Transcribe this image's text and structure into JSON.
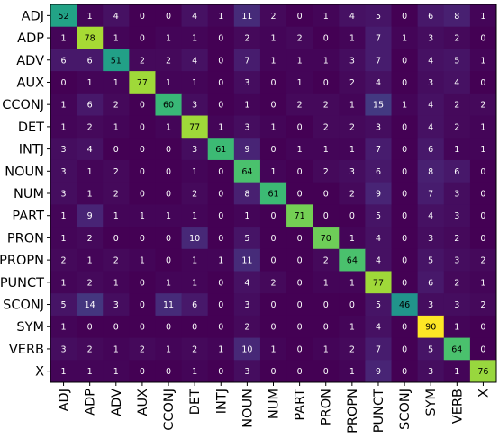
{
  "chart_data": {
    "type": "heatmap",
    "title": "",
    "xlabel": "",
    "ylabel": "",
    "rows": [
      "ADJ",
      "ADP",
      "ADV",
      "AUX",
      "CCONJ",
      "DET",
      "INTJ",
      "NOUN",
      "NUM",
      "PART",
      "PRON",
      "PROPN",
      "PUNCT",
      "SCONJ",
      "SYM",
      "VERB",
      "X"
    ],
    "columns": [
      "ADJ",
      "ADP",
      "ADV",
      "AUX",
      "CCONJ",
      "DET",
      "INTJ",
      "NOUN",
      "NUM",
      "PART",
      "PRON",
      "PROPN",
      "PUNCT",
      "SCONJ",
      "SYM",
      "VERB",
      "X"
    ],
    "values": [
      [
        52,
        1,
        4,
        0,
        0,
        4,
        1,
        11,
        2,
        0,
        1,
        4,
        5,
        0,
        6,
        8,
        1
      ],
      [
        1,
        78,
        1,
        0,
        1,
        1,
        0,
        2,
        1,
        2,
        0,
        1,
        7,
        1,
        3,
        2,
        0
      ],
      [
        6,
        6,
        51,
        2,
        2,
        4,
        0,
        7,
        1,
        1,
        1,
        3,
        7,
        0,
        4,
        5,
        1
      ],
      [
        0,
        1,
        1,
        77,
        1,
        1,
        0,
        3,
        0,
        1,
        0,
        2,
        4,
        0,
        3,
        4,
        0
      ],
      [
        1,
        6,
        2,
        0,
        60,
        3,
        0,
        1,
        0,
        2,
        2,
        1,
        15,
        1,
        4,
        2,
        2
      ],
      [
        1,
        2,
        1,
        0,
        1,
        77,
        1,
        3,
        1,
        0,
        2,
        2,
        3,
        0,
        4,
        2,
        1
      ],
      [
        3,
        4,
        0,
        0,
        0,
        3,
        61,
        9,
        0,
        1,
        1,
        1,
        7,
        0,
        6,
        1,
        1
      ],
      [
        3,
        1,
        2,
        0,
        0,
        1,
        0,
        64,
        1,
        0,
        2,
        3,
        6,
        0,
        8,
        6,
        0
      ],
      [
        3,
        1,
        2,
        0,
        0,
        2,
        0,
        8,
        61,
        0,
        0,
        2,
        9,
        0,
        7,
        3,
        0
      ],
      [
        1,
        9,
        1,
        1,
        1,
        1,
        0,
        1,
        0,
        71,
        0,
        0,
        5,
        0,
        4,
        3,
        0
      ],
      [
        1,
        2,
        0,
        0,
        0,
        10,
        0,
        5,
        0,
        0,
        70,
        1,
        4,
        0,
        3,
        2,
        0
      ],
      [
        2,
        1,
        2,
        1,
        0,
        1,
        1,
        11,
        0,
        0,
        2,
        64,
        4,
        0,
        5,
        3,
        2
      ],
      [
        1,
        2,
        1,
        0,
        1,
        1,
        0,
        4,
        2,
        0,
        1,
        1,
        77,
        0,
        6,
        2,
        1
      ],
      [
        5,
        14,
        3,
        0,
        11,
        6,
        0,
        3,
        0,
        0,
        0,
        0,
        5,
        46,
        3,
        3,
        2
      ],
      [
        1,
        0,
        0,
        0,
        0,
        0,
        0,
        2,
        0,
        0,
        0,
        1,
        4,
        0,
        90,
        1,
        0
      ],
      [
        3,
        2,
        1,
        2,
        1,
        2,
        1,
        10,
        1,
        0,
        1,
        2,
        7,
        0,
        5,
        64,
        0
      ],
      [
        1,
        1,
        1,
        0,
        0,
        1,
        0,
        3,
        0,
        0,
        0,
        1,
        9,
        0,
        3,
        1,
        76
      ]
    ],
    "vmin": 0,
    "vmax": 90,
    "colormap": "viridis",
    "grid": false,
    "legend": "none"
  }
}
